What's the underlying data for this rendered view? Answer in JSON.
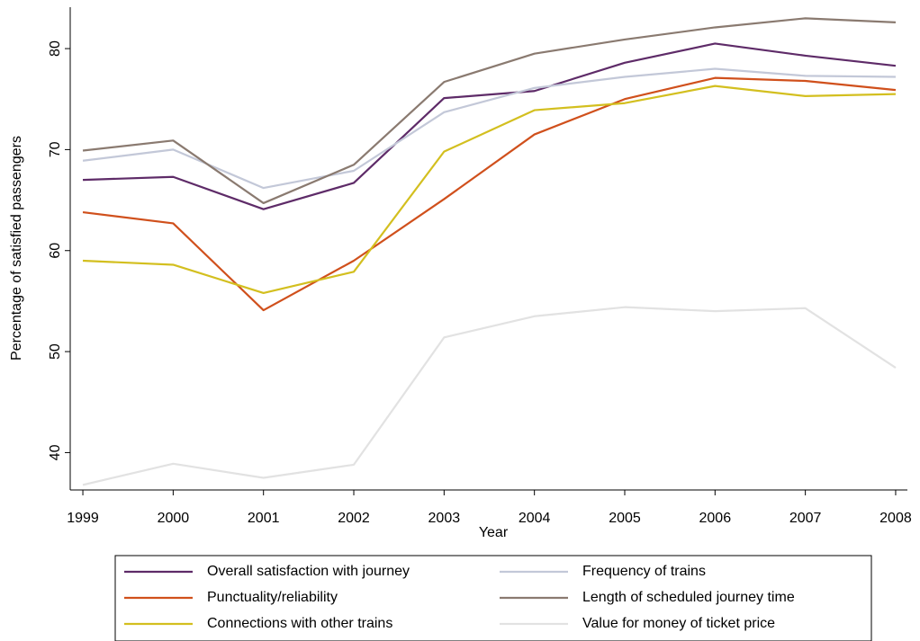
{
  "chart_data": {
    "type": "line",
    "x_label": "Year",
    "y_label": "Percentage of satisfied passengers",
    "x": [
      1999,
      2000,
      2001,
      2002,
      2003,
      2004,
      2005,
      2006,
      2007,
      2008
    ],
    "xlim": [
      1998.86,
      2008.13
    ],
    "xticks": [
      1999,
      2000,
      2001,
      2002,
      2003,
      2004,
      2005,
      2006,
      2007,
      2008
    ],
    "ylim": [
      36.3,
      84.1
    ],
    "yticks": [
      40,
      50,
      60,
      70,
      80
    ],
    "grid": false,
    "legend": "bottom",
    "series": [
      {
        "name": "Overall satisfaction with journey",
        "color": "#5e2b68",
        "values": [
          67.0,
          67.3,
          64.1,
          66.7,
          75.1,
          75.8,
          78.6,
          80.5,
          79.3,
          78.3
        ]
      },
      {
        "name": "Frequency of trains",
        "color": "#c3c8d8",
        "values": [
          68.9,
          70.0,
          66.2,
          67.9,
          73.7,
          76.1,
          77.2,
          78.0,
          77.3,
          77.2
        ]
      },
      {
        "name": "Punctuality/reliability",
        "color": "#d0501c",
        "values": [
          63.8,
          62.7,
          54.1,
          59.0,
          65.1,
          71.5,
          75.0,
          77.1,
          76.8,
          75.9
        ]
      },
      {
        "name": "Length of scheduled journey time",
        "color": "#8a7a70",
        "values": [
          69.9,
          70.9,
          64.7,
          68.5,
          76.7,
          79.5,
          80.9,
          82.1,
          83.0,
          82.6
        ]
      },
      {
        "name": "Connections with other trains",
        "color": "#d3bf1f",
        "values": [
          59.0,
          58.6,
          55.8,
          57.9,
          69.8,
          73.9,
          74.6,
          76.3,
          75.3,
          75.5
        ]
      },
      {
        "name": "Value for money of ticket price",
        "color": "#e2e2e2",
        "values": [
          36.8,
          38.9,
          37.5,
          38.8,
          51.4,
          53.5,
          54.4,
          54.0,
          54.3,
          48.4
        ]
      }
    ]
  }
}
